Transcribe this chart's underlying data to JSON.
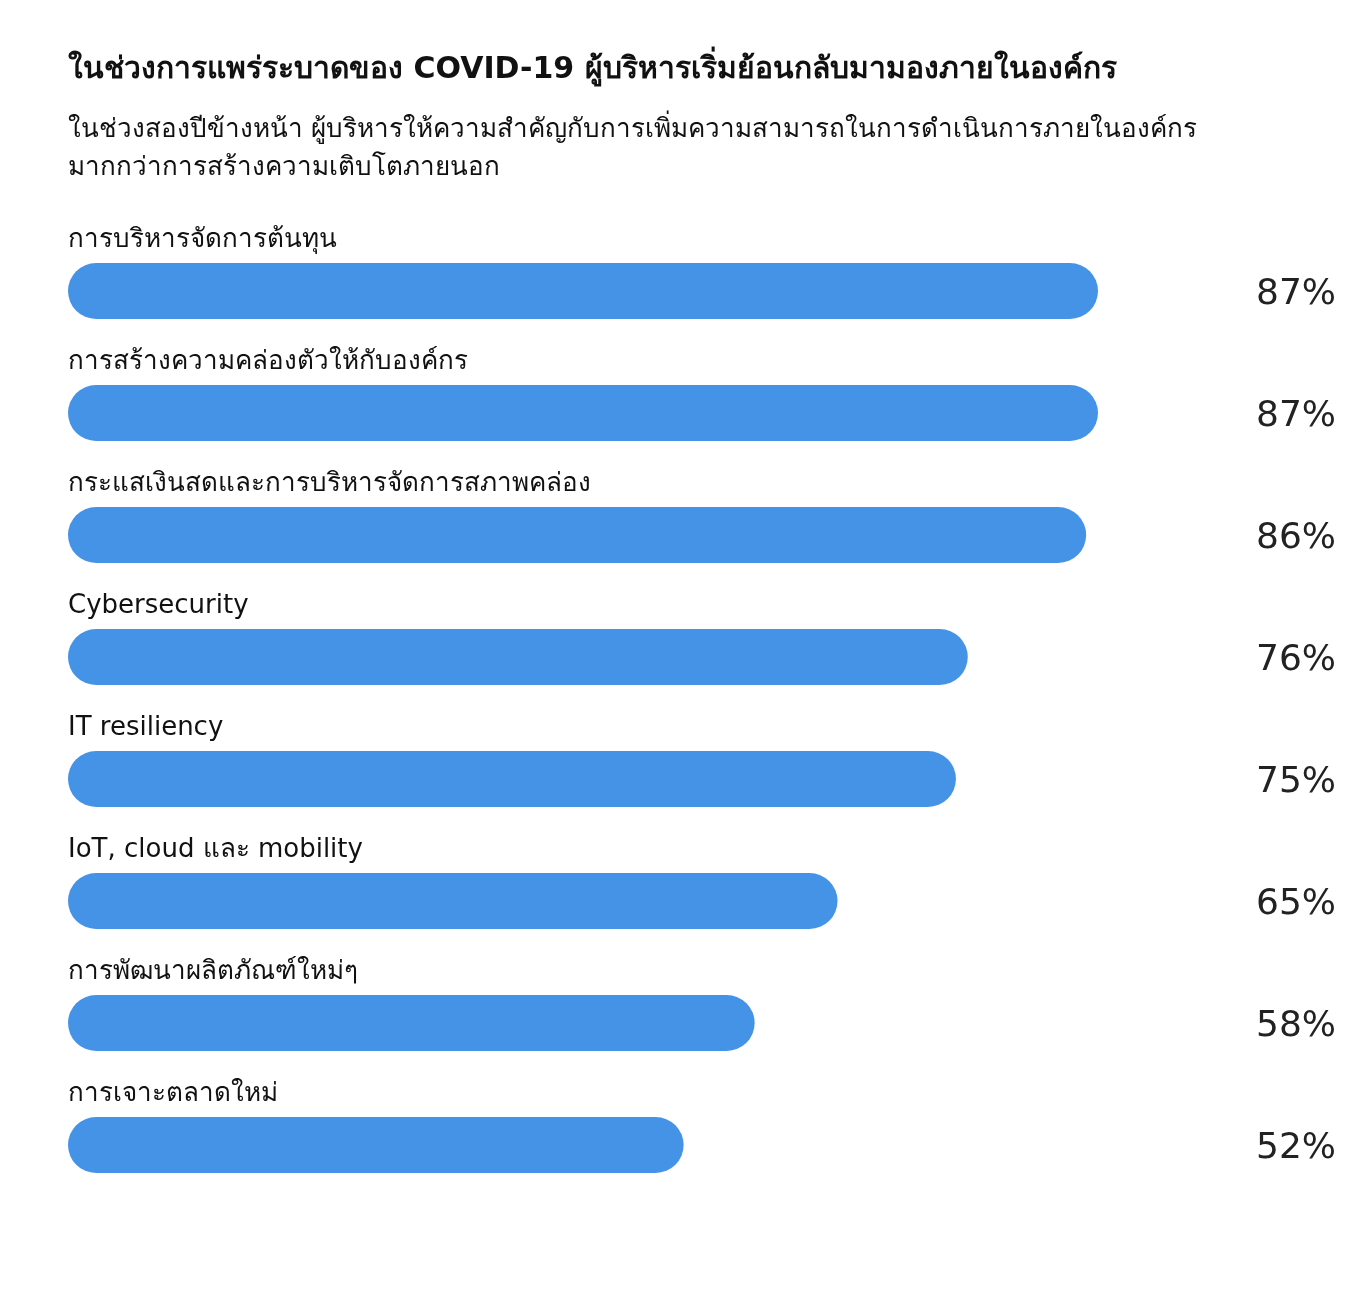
{
  "chart_data": {
    "type": "bar",
    "orientation": "horizontal",
    "title": "ในช่วงการแพร่ระบาดของ COVID-19 ผู้บริหารเริ่มย้อนกลับมามองภายในองค์กร",
    "subtitle": "ในช่วงสองปีข้างหน้า ผู้บริหารให้ความสำคัญกับการเพิ่มความสามารถในการดำเนินการภายในองค์กร มากกว่าการสร้างความเติบโตภายนอก",
    "categories": [
      "การบริหารจัดการต้นทุน",
      "การสร้างความคล่องตัวให้กับองค์กร",
      "กระแสเงินสดและการบริหารจัดการสภาพคล่อง",
      "Cybersecurity",
      "IT resiliency",
      "IoT, cloud และ mobility",
      "การพัฒนาผลิตภัณฑ์ใหม่ๆ",
      "การเจาะตลาดใหม่"
    ],
    "series": [
      {
        "color": "#4593e6",
        "values": [
          87,
          87,
          86,
          76,
          75,
          65,
          58,
          52
        ],
        "value_labels": [
          "87%",
          "87%",
          "86%",
          "76%",
          "75%",
          "65%",
          "58%",
          "52%"
        ]
      }
    ]
  }
}
